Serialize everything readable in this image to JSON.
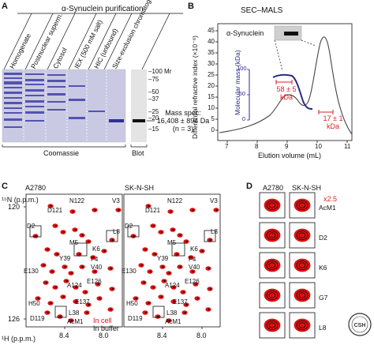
{
  "panelA": {
    "letter": "A",
    "title": "α-Synuclein purification",
    "lanes": [
      "Homogenate",
      "Postnuclear superm.",
      "Cytosol",
      "IEX (500 mM salt)",
      "HIC (unbound)",
      "Size-exclusion chromatography"
    ],
    "mw_header": "–100 Mr",
    "markers": [
      "–75",
      "–50",
      "–37",
      "–25",
      "–20",
      "–15"
    ],
    "mass_spec": [
      "Mass spec:",
      "16,408 ± 894 Da",
      "(n = 3)"
    ],
    "coomassie": "Coomassie",
    "blot": "Blot"
  },
  "panelB": {
    "letter": "B",
    "title": "SEC–MALS",
    "inset_label": "α-Synuclein",
    "y_label": "Differential refractive index (×10⁻⁶)",
    "y_ticks": [
      "0",
      "5",
      "10",
      "15",
      "20",
      "25",
      "30",
      "35",
      "40",
      "45"
    ],
    "x_label": "Elution volume (mL)",
    "x_ticks": [
      "7",
      "8",
      "9",
      "10",
      "11"
    ],
    "molar_label": "Molecular mass (kDa)",
    "molar_ticks": [
      "0",
      "50",
      "100"
    ],
    "ann1": [
      "58 ± 5",
      "kDa"
    ],
    "ann2": [
      "17 ± 1",
      "kDa"
    ]
  },
  "panelC": {
    "letter": "C",
    "left_title": "A2780",
    "right_title": "SK-N-SH",
    "y_label": "¹⁵N (p.p.m.)",
    "y_ticks": [
      "120",
      "126"
    ],
    "x_label": "¹H (p.p.m.)",
    "x_ticks": [
      "8.4",
      "8.0"
    ],
    "peak_labels": [
      "N122",
      "V3",
      "D121",
      "D2",
      "L8",
      "M5",
      "K6",
      "Y39",
      "F4",
      "V40",
      "E130",
      "E126",
      "A124",
      "E137",
      "H50",
      "L38",
      "D119",
      "AcM1"
    ],
    "legend_in_cell": "In cell",
    "legend_buffer": "In buffer"
  },
  "panelD": {
    "letter": "D",
    "col1": "A2780",
    "col2": "SK-N-SH",
    "scale_note": "x2.5",
    "rows": [
      "AcM1",
      "D2",
      "K6",
      "G7",
      "L8"
    ]
  },
  "colors": {
    "in_cell": "#e01010",
    "in_buffer": "#111111",
    "trace": "#444444",
    "mass_trace": "#2a2a8a",
    "coomassie_band": "#5a5ab8",
    "ann_red": "#d22222"
  }
}
